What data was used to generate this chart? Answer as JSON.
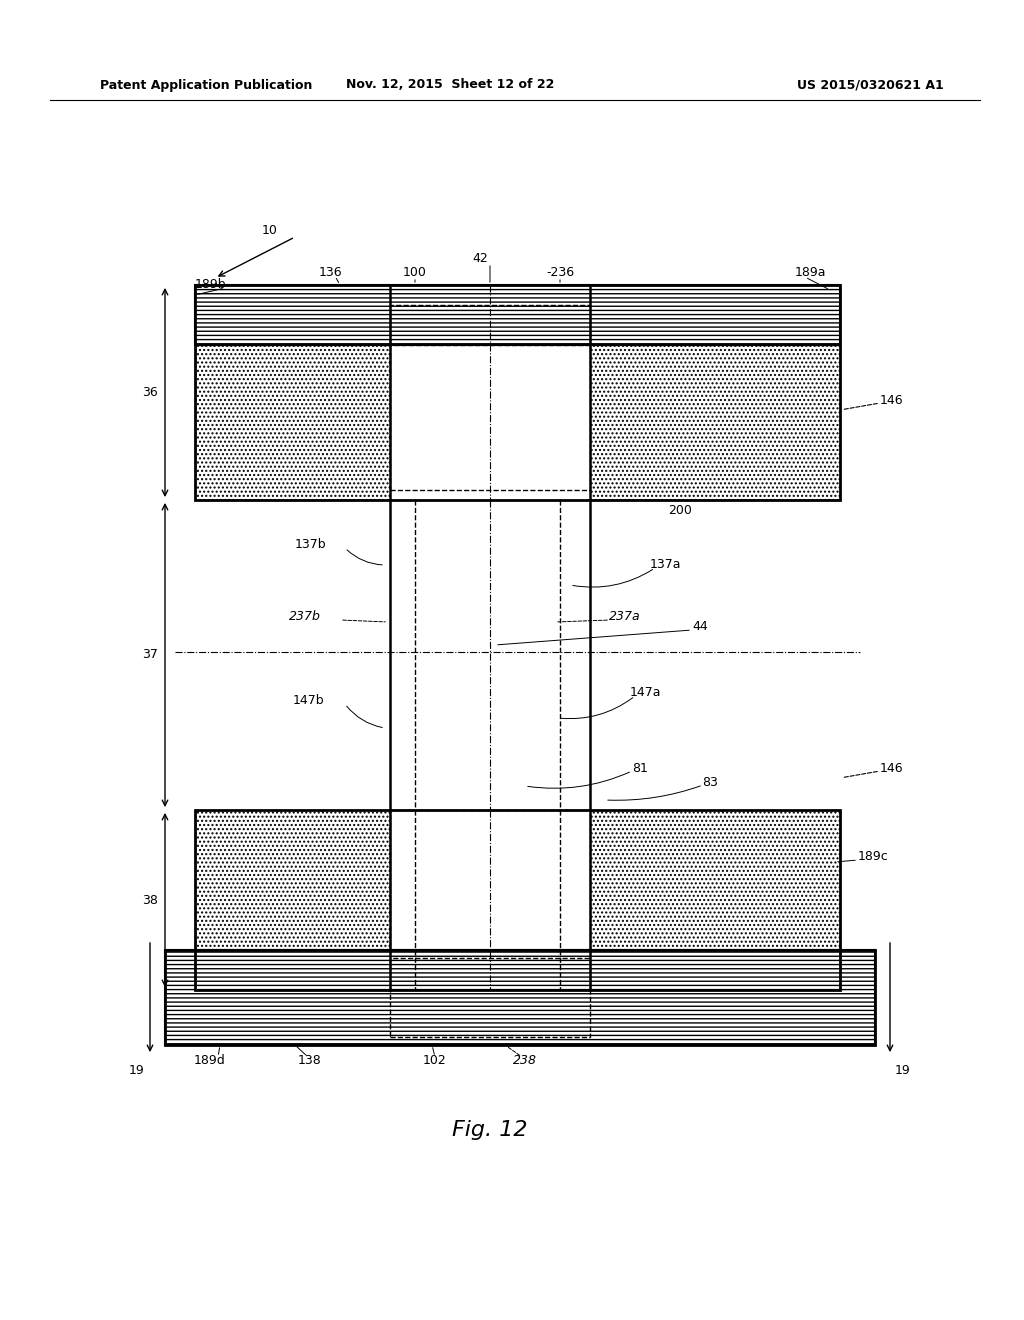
{
  "header_left": "Patent Application Publication",
  "header_mid": "Nov. 12, 2015  Sheet 12 of 22",
  "header_right": "US 2015/0320621 A1",
  "fig_label": "Fig. 12",
  "bg_color": "#ffffff"
}
